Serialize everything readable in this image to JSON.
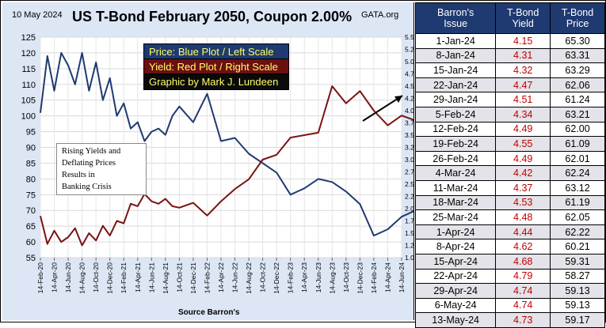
{
  "header": {
    "date": "10 May 2024",
    "title": "US T-Bond February 2050, Coupon 2.00%",
    "site": "GATA.org"
  },
  "legend": {
    "price": "Price:  Blue Plot / Left Scale",
    "yield": "Yield:  Red Plot / Right Scale",
    "credit": "Graphic by Mark J. Lundeen"
  },
  "annotation": [
    "Rising Yields and",
    "Deflating Prices",
    "Results in",
    "Banking Crisis"
  ],
  "source": "Source Barron's",
  "colors": {
    "price": "#1f3a70",
    "yield": "#7a1212",
    "arrow": "#000000",
    "header_fill": "#1f3a70"
  },
  "chart_data": {
    "type": "line",
    "title": "US T-Bond February 2050, Coupon 2.00%",
    "x_tick_labels": [
      "14-Feb-20",
      "14-Apr-20",
      "14-Jun-20",
      "14-Aug-20",
      "14-Oct-20",
      "14-Dec-20",
      "14-Feb-21",
      "14-Apr-21",
      "14-Jun-21",
      "14-Aug-21",
      "14-Oct-21",
      "14-Dec-21",
      "14-Feb-22",
      "14-Apr-22",
      "14-Jun-22",
      "14-Aug-22",
      "14-Oct-22",
      "14-Dec-22",
      "14-Feb-23",
      "14-Apr-23",
      "14-Jun-23",
      "14-Aug-23",
      "14-Oct-23",
      "14-Dec-23",
      "14-Feb-24",
      "14-Apr-24",
      "14-Jun-24"
    ],
    "left_axis": {
      "ticks": [
        "55",
        "60",
        "65",
        "70",
        "75",
        "80",
        "85",
        "90",
        "95",
        "100",
        "105",
        "110",
        "115",
        "120",
        "125"
      ],
      "range": [
        55,
        125
      ]
    },
    "right_axis": {
      "ticks": [
        "1.00",
        "1.25",
        "1.50",
        "1.75",
        "2.00",
        "2.25",
        "2.50",
        "2.75",
        "3.00",
        "3.25",
        "3.50",
        "3.75",
        "4.00",
        "4.25",
        "4.50",
        "4.75",
        "5.00",
        "5.25",
        "5.50"
      ],
      "range": [
        1.0,
        5.5
      ]
    },
    "series": [
      {
        "name": "Price",
        "axis": "left",
        "x": [
          0,
          0.5,
          1,
          1.5,
          2,
          2.5,
          3,
          3.5,
          4,
          4.5,
          5,
          5.5,
          6,
          6.5,
          7,
          7.5,
          8,
          8.5,
          9,
          9.5,
          10,
          11,
          12,
          13,
          14,
          15,
          16,
          17,
          18,
          19,
          20,
          21,
          22,
          23,
          24,
          25,
          26,
          27,
          28,
          29,
          30,
          31,
          32,
          33,
          34,
          35,
          36,
          37,
          38,
          39,
          40,
          41,
          42,
          43,
          44,
          45,
          46,
          47,
          48,
          49,
          50,
          51,
          52,
          52.5,
          53
        ],
        "values": [
          101,
          119,
          108,
          120,
          116,
          110,
          120,
          108,
          117,
          105,
          112,
          100,
          104,
          96,
          98,
          92,
          95,
          96,
          94,
          100,
          103,
          98,
          107,
          92,
          93,
          88,
          85,
          82,
          75,
          77,
          80,
          79,
          76,
          72,
          62,
          64,
          68,
          70,
          72,
          69,
          71,
          70,
          72,
          70,
          71,
          68,
          70,
          67,
          68,
          65,
          66,
          64,
          61,
          55,
          58,
          60,
          65,
          63,
          60,
          61,
          58,
          62,
          58,
          59,
          59
        ]
      },
      {
        "name": "Yield",
        "axis": "right",
        "x": [
          0,
          0.5,
          1,
          1.5,
          2,
          2.5,
          3,
          3.5,
          4,
          4.5,
          5,
          5.5,
          6,
          6.5,
          7,
          7.5,
          8,
          8.5,
          9,
          9.5,
          10,
          11,
          12,
          13,
          14,
          15,
          16,
          17,
          18,
          19,
          20,
          21,
          22,
          23,
          24,
          25,
          26,
          27,
          28,
          29,
          30,
          31,
          32,
          33,
          34,
          35,
          36,
          37,
          38,
          39,
          40,
          41,
          42,
          43,
          44,
          45,
          46,
          47,
          48,
          49,
          50,
          51,
          52,
          52.5,
          53
        ],
        "values": [
          1.85,
          1.28,
          1.55,
          1.32,
          1.42,
          1.6,
          1.25,
          1.5,
          1.35,
          1.65,
          1.45,
          1.75,
          1.7,
          2.1,
          2.05,
          2.3,
          2.15,
          2.1,
          2.2,
          2.05,
          2.02,
          2.12,
          1.86,
          2.15,
          2.4,
          2.6,
          3.0,
          3.1,
          3.45,
          3.5,
          3.55,
          4.5,
          4.15,
          4.4,
          4.0,
          3.7,
          3.9,
          3.8,
          4.0,
          3.95,
          4.05,
          4.1,
          4.2,
          4.5,
          4.7,
          4.8,
          5.05,
          4.9,
          4.65,
          4.7,
          4.62,
          4.55,
          4.45,
          4.25,
          4.47,
          4.51,
          4.34,
          4.49,
          4.55,
          4.62,
          4.68,
          4.79,
          4.74,
          4.74,
          4.73
        ]
      }
    ]
  },
  "table": {
    "headers": [
      "Barron's\nIssue",
      "T-Bond\nYield",
      "T-Bond\nPrice"
    ],
    "rows": [
      [
        "1-Jan-24",
        "4.15",
        "65.30"
      ],
      [
        "8-Jan-24",
        "4.31",
        "63.31"
      ],
      [
        "15-Jan-24",
        "4.32",
        "63.29"
      ],
      [
        "22-Jan-24",
        "4.47",
        "62.06"
      ],
      [
        "29-Jan-24",
        "4.51",
        "61.24"
      ],
      [
        "5-Feb-24",
        "4.34",
        "63.21"
      ],
      [
        "12-Feb-24",
        "4.49",
        "62.00"
      ],
      [
        "19-Feb-24",
        "4.55",
        "61.09"
      ],
      [
        "26-Feb-24",
        "4.49",
        "62.01"
      ],
      [
        "4-Mar-24",
        "4.42",
        "62.24"
      ],
      [
        "11-Mar-24",
        "4.37",
        "63.12"
      ],
      [
        "18-Mar-24",
        "4.53",
        "61.19"
      ],
      [
        "25-Mar-24",
        "4.48",
        "62.05"
      ],
      [
        "1-Apr-24",
        "4.44",
        "62.22"
      ],
      [
        "8-Apr-24",
        "4.62",
        "60.21"
      ],
      [
        "15-Apr-24",
        "4.68",
        "59.31"
      ],
      [
        "22-Apr-24",
        "4.79",
        "58.27"
      ],
      [
        "29-Apr-24",
        "4.74",
        "59.13"
      ],
      [
        "6-May-24",
        "4.74",
        "59.13"
      ],
      [
        "13-May-24",
        "4.73",
        "59.17"
      ]
    ]
  }
}
